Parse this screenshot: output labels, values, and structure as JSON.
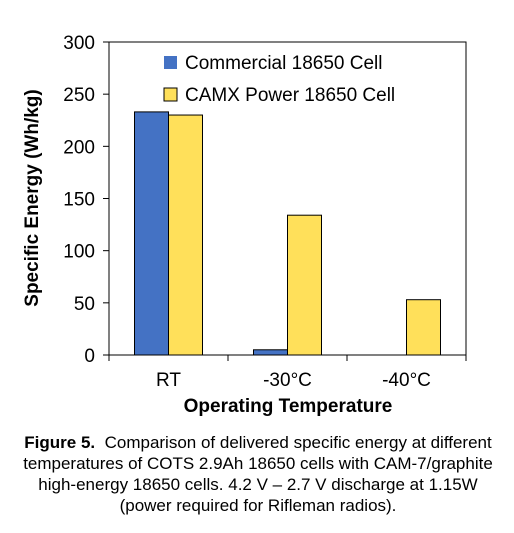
{
  "chart_data": {
    "type": "bar",
    "categories": [
      "RT",
      "-30°C",
      "-40°C"
    ],
    "series": [
      {
        "name": "Commercial 18650 Cell",
        "values": [
          233,
          5,
          0
        ]
      },
      {
        "name": "CAMX Power 18650 Cell",
        "values": [
          230,
          134,
          53
        ]
      }
    ],
    "xlabel": "Operating Temperature",
    "ylabel": "Specific Energy (Wh/kg)",
    "ylim": [
      0,
      300
    ],
    "yticks": [
      0,
      50,
      100,
      150,
      200,
      250,
      300
    ],
    "grid": false,
    "legend_position": "top-right"
  },
  "colors": {
    "series": [
      "#4472C4",
      "#FFE05A"
    ],
    "bar_stroke": "#000000",
    "axis": "#000000"
  },
  "caption": {
    "label": "Figure 5.",
    "text": "Comparison of delivered specific energy at different temperatures of COTS 2.9Ah 18650 cells with CAM-7/graphite high-energy 18650 cells. 4.2 V – 2.7 V discharge at 1.15W (power required for Rifleman radios)."
  }
}
